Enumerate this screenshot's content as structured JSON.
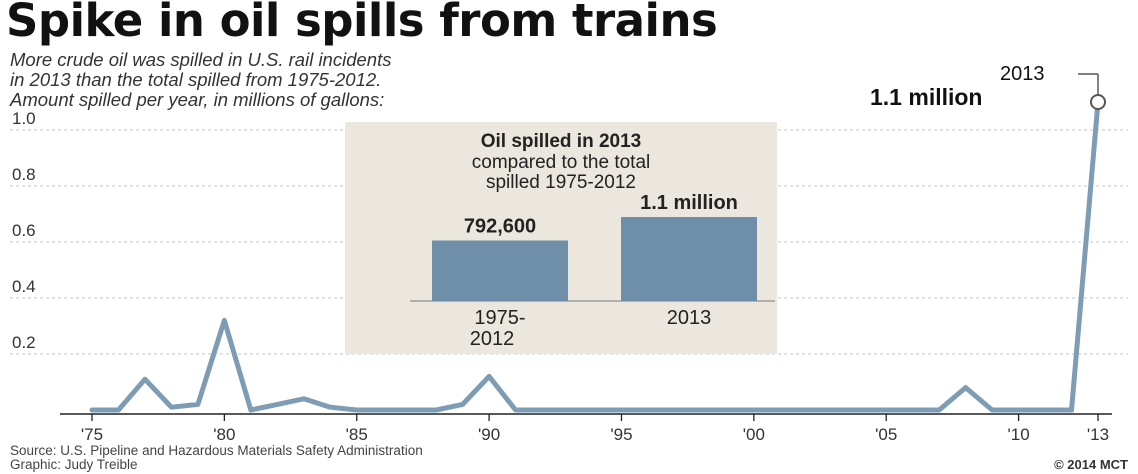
{
  "title": "Spike in oil spills from trains",
  "subtitle": [
    "More crude oil was spilled in U.S. rail incidents",
    "in 2013 than the total spilled from 1975-2012.",
    "Amount spilled per year, in millions of gallons:"
  ],
  "callout": {
    "year": "2013",
    "value": "1.1 million"
  },
  "source": "Source: U.S. Pipeline and Hazardous Materials Safety Administration",
  "graphic_credit": "Graphic: Judy Treible",
  "copyright": "© 2014 MCT",
  "colors": {
    "line": "#7e9cb4",
    "bar": "#6f8ea8",
    "inset_bg": "#ebe7de"
  },
  "chart_data": [
    {
      "type": "line",
      "title": "Spike in oil spills from trains",
      "ylabel": "Amount spilled per year, in millions of gallons",
      "ylim": [
        0,
        1.1
      ],
      "yticks": [
        0.2,
        0.4,
        0.6,
        0.8,
        1.0
      ],
      "ytick_labels": [
        "0.2",
        "0.4",
        "0.6",
        "0.8",
        "1.0"
      ],
      "xticks": [
        1975,
        1980,
        1985,
        1990,
        1995,
        2000,
        2005,
        2010,
        2013
      ],
      "xtick_labels": [
        "'75",
        "'80",
        "'85",
        "'90",
        "'95",
        "'00",
        "'05",
        "'10",
        "'13"
      ],
      "grid": true,
      "x": [
        1975,
        1976,
        1977,
        1978,
        1979,
        1980,
        1981,
        1982,
        1983,
        1984,
        1985,
        1986,
        1987,
        1988,
        1989,
        1990,
        1991,
        1992,
        1993,
        1994,
        1995,
        1996,
        1997,
        1998,
        1999,
        2000,
        2001,
        2002,
        2003,
        2004,
        2005,
        2006,
        2007,
        2008,
        2009,
        2010,
        2011,
        2012,
        2013
      ],
      "values": [
        0.0,
        0.0,
        0.11,
        0.01,
        0.02,
        0.32,
        0.0,
        0.02,
        0.04,
        0.01,
        0.0,
        0.0,
        0.0,
        0.0,
        0.02,
        0.12,
        0.0,
        0.0,
        0.0,
        0.0,
        0.0,
        0.0,
        0.0,
        0.0,
        0.0,
        0.0,
        0.0,
        0.0,
        0.0,
        0.0,
        0.0,
        0.0,
        0.0,
        0.08,
        0.0,
        0.0,
        0.0,
        0.0,
        1.1
      ]
    },
    {
      "type": "bar",
      "title": "Oil spilled in 2013 compared to the total spilled 1975-2012",
      "categories": [
        "1975-2012",
        "2013"
      ],
      "values": [
        792600,
        1100000
      ],
      "data_labels": [
        "792,600",
        "1.1 million"
      ]
    }
  ]
}
